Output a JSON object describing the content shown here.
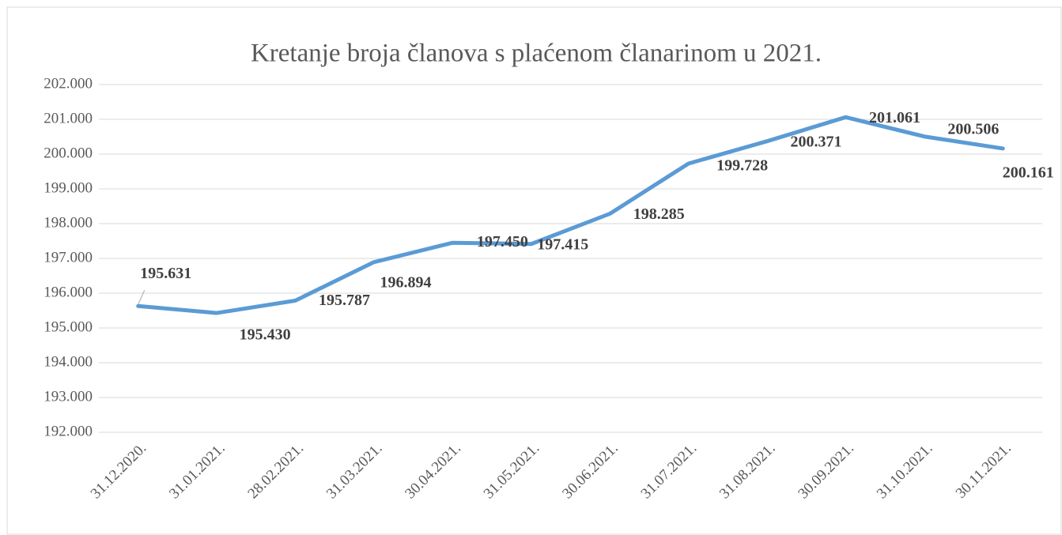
{
  "chart_data": {
    "type": "line",
    "title": "Kretanje broja članova s plaćenom članarinom u 2021.",
    "categories": [
      "31.12.2020.",
      "31.01.2021.",
      "28.02.2021.",
      "31.03.2021.",
      "30.04.2021.",
      "31.05.2021.",
      "30.06.2021.",
      "31.07.2021.",
      "31.08.2021.",
      "30.09.2021.",
      "31.10.2021.",
      "30.11.2021."
    ],
    "series": [
      {
        "color": "#5b9bd5",
        "values": [
          195631,
          195430,
          195787,
          196894,
          197450,
          197415,
          198285,
          199728,
          200371,
          201061,
          200506,
          200161
        ],
        "value_labels": [
          "195.631",
          "195.430",
          "195.787",
          "196.894",
          "197.450",
          "197.415",
          "198.285",
          "199.728",
          "200.371",
          "201.061",
          "200.506",
          "200.161"
        ]
      }
    ],
    "ylim": [
      192000,
      202000
    ],
    "yticks": [
      {
        "value": 192000,
        "label": "192.000"
      },
      {
        "value": 193000,
        "label": "193.000"
      },
      {
        "value": 194000,
        "label": "194.000"
      },
      {
        "value": 195000,
        "label": "195.000"
      },
      {
        "value": 196000,
        "label": "196.000"
      },
      {
        "value": 197000,
        "label": "197.000"
      },
      {
        "value": 198000,
        "label": "198.000"
      },
      {
        "value": 199000,
        "label": "199.000"
      },
      {
        "value": 200000,
        "label": "200.000"
      },
      {
        "value": 201000,
        "label": "201.000"
      },
      {
        "value": 202000,
        "label": "202.000"
      }
    ],
    "grid": true
  }
}
